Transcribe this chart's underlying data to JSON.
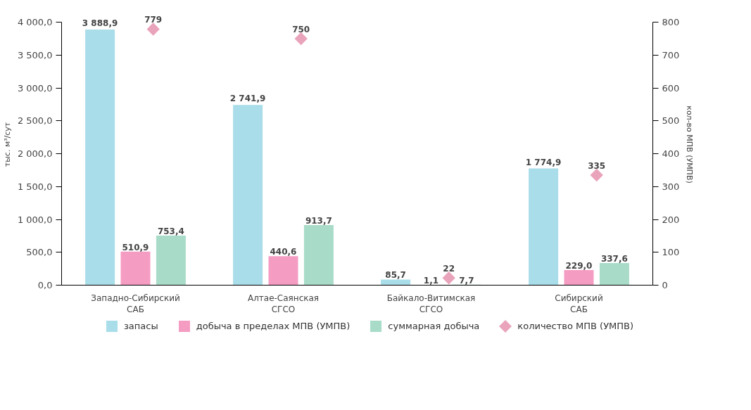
{
  "chart_data": {
    "type": "bar",
    "categories": [
      "Западно-Сибирский\nСАБ",
      "Алтае-Саянская\nСГСО",
      "Байкало-Витимская\nСГСО",
      "Сибирский\nСАБ"
    ],
    "ylabel": "тыс. м³/сут",
    "y2label": "кол-во МПВ (УМПВ)",
    "ylim": [
      0,
      4000
    ],
    "yticks": [
      {
        "value": 0,
        "label": "0,0"
      },
      {
        "value": 500,
        "label": "500,0"
      },
      {
        "value": 1000,
        "label": "1 000,0"
      },
      {
        "value": 1500,
        "label": "1 500,0"
      },
      {
        "value": 2000,
        "label": "2 000,0"
      },
      {
        "value": 2500,
        "label": "2 500,0"
      },
      {
        "value": 3000,
        "label": "3 000,0"
      },
      {
        "value": 3500,
        "label": "3 500,0"
      },
      {
        "value": 4000,
        "label": "4 000,0"
      }
    ],
    "y2lim": [
      0,
      800
    ],
    "y2ticks": [
      0,
      100,
      200,
      300,
      400,
      500,
      600,
      700,
      800
    ],
    "series": [
      {
        "name": "запасы",
        "color": "#a9dde9",
        "values": [
          3888.9,
          2741.9,
          85.7,
          1774.9
        ],
        "value_labels": [
          "3 888,9",
          "2 741,9",
          "85,7",
          "1 774,9"
        ]
      },
      {
        "name": "добыча в пределах МПВ (УМПВ)",
        "color": "#f59cc3",
        "values": [
          510.9,
          440.6,
          1.1,
          229.0
        ],
        "value_labels": [
          "510,9",
          "440,6",
          "1,1",
          "229,0"
        ]
      },
      {
        "name": "суммарная добыча",
        "color": "#a9dcc8",
        "values": [
          753.4,
          913.7,
          7.7,
          337.6
        ],
        "value_labels": [
          "753,4",
          "913,7",
          "7,7",
          "337,6"
        ]
      },
      {
        "name": "количество МПВ (УМПВ)",
        "type": "scatter",
        "axis": "y2",
        "marker": "diamond",
        "color": "#e9a3bb",
        "x": [
          "Западно-Сибирский\nСАБ",
          "Алтае-Саянская\nСГСО",
          "Байкало-Витимская\nСГСО",
          "Сибирский\nСАБ"
        ],
        "values": [
          779,
          750,
          22,
          335
        ],
        "value_labels": [
          "779",
          "750",
          "22",
          "335"
        ]
      }
    ],
    "legend": "bottom",
    "grid": false
  }
}
